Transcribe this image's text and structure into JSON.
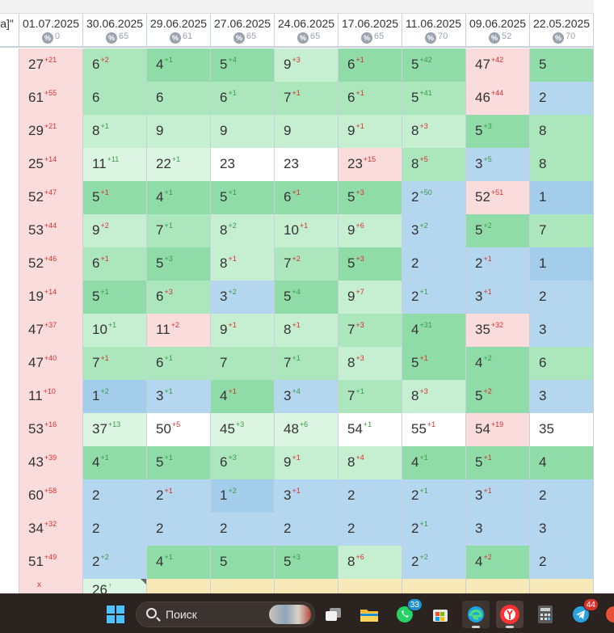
{
  "header": {
    "left_fragment": "та]\"",
    "columns": [
      {
        "date": "01.07.2025",
        "count": "0"
      },
      {
        "date": "30.06.2025",
        "count": "65"
      },
      {
        "date": "29.06.2025",
        "count": "61"
      },
      {
        "date": "27.06.2025",
        "count": "65"
      },
      {
        "date": "24.06.2025",
        "count": "65"
      },
      {
        "date": "17.06.2025",
        "count": "65"
      },
      {
        "date": "11.06.2025",
        "count": "70"
      },
      {
        "date": "09.06.2025",
        "count": "52"
      },
      {
        "date": "22.05.2025",
        "count": "70"
      }
    ],
    "percent_icon_glyph": "%"
  },
  "rows": [
    [
      [
        "27",
        "+21",
        "down",
        "pink"
      ],
      [
        "6",
        "+2",
        "down",
        "g2"
      ],
      [
        "4",
        "+1",
        "up",
        "g1"
      ],
      [
        "5",
        "+4",
        "up",
        "g1"
      ],
      [
        "9",
        "+3",
        "down",
        "g3"
      ],
      [
        "6",
        "+1",
        "down",
        "g1"
      ],
      [
        "5",
        "+42",
        "up",
        "g1"
      ],
      [
        "47",
        "+42",
        "down",
        "pink"
      ],
      [
        "5",
        "",
        "",
        "g1"
      ]
    ],
    [
      [
        "61",
        "+55",
        "down",
        "pink"
      ],
      [
        "6",
        "",
        "",
        "g2"
      ],
      [
        "6",
        "",
        "",
        "g2"
      ],
      [
        "6",
        "+1",
        "up",
        "g2"
      ],
      [
        "7",
        "+1",
        "down",
        "g2"
      ],
      [
        "6",
        "+1",
        "down",
        "g2"
      ],
      [
        "5",
        "+41",
        "up",
        "g2"
      ],
      [
        "46",
        "+44",
        "down",
        "pink"
      ],
      [
        "2",
        "",
        "",
        "blue"
      ]
    ],
    [
      [
        "29",
        "+21",
        "down",
        "pink"
      ],
      [
        "8",
        "+1",
        "up",
        "g3"
      ],
      [
        "9",
        "",
        "",
        "g3"
      ],
      [
        "9",
        "",
        "",
        "g3"
      ],
      [
        "9",
        "",
        "",
        "g3"
      ],
      [
        "9",
        "+1",
        "down",
        "g3"
      ],
      [
        "8",
        "+3",
        "down",
        "g3"
      ],
      [
        "5",
        "+3",
        "up",
        "g1"
      ],
      [
        "8",
        "",
        "",
        "g2"
      ]
    ],
    [
      [
        "25",
        "+14",
        "down",
        "pink"
      ],
      [
        "11",
        "+11",
        "up",
        "g4"
      ],
      [
        "22",
        "+1",
        "up",
        "g4"
      ],
      [
        "23",
        "",
        "",
        "white"
      ],
      [
        "23",
        "",
        "",
        "white"
      ],
      [
        "23",
        "+15",
        "down",
        "pink"
      ],
      [
        "8",
        "+5",
        "down",
        "g2"
      ],
      [
        "3",
        "+5",
        "up",
        "blue"
      ],
      [
        "8",
        "",
        "",
        "g2"
      ]
    ],
    [
      [
        "52",
        "+47",
        "down",
        "pink"
      ],
      [
        "5",
        "+1",
        "down",
        "g1"
      ],
      [
        "4",
        "+1",
        "up",
        "g1"
      ],
      [
        "5",
        "+1",
        "up",
        "g1"
      ],
      [
        "6",
        "+1",
        "down",
        "g1"
      ],
      [
        "5",
        "+3",
        "down",
        "g1"
      ],
      [
        "2",
        "+50",
        "up",
        "blue"
      ],
      [
        "52",
        "+51",
        "down",
        "pink"
      ],
      [
        "1",
        "",
        "",
        "blue2"
      ]
    ],
    [
      [
        "53",
        "+44",
        "down",
        "pink"
      ],
      [
        "9",
        "+2",
        "down",
        "g3"
      ],
      [
        "7",
        "+1",
        "up",
        "g2"
      ],
      [
        "8",
        "+2",
        "up",
        "g3"
      ],
      [
        "10",
        "+1",
        "down",
        "g3"
      ],
      [
        "9",
        "+6",
        "down",
        "g3"
      ],
      [
        "3",
        "+2",
        "up",
        "blue"
      ],
      [
        "5",
        "+2",
        "up",
        "g1"
      ],
      [
        "7",
        "",
        "",
        "g2"
      ]
    ],
    [
      [
        "52",
        "+46",
        "down",
        "pink"
      ],
      [
        "6",
        "+1",
        "down",
        "g2"
      ],
      [
        "5",
        "+3",
        "up",
        "g1"
      ],
      [
        "8",
        "+1",
        "down",
        "g3"
      ],
      [
        "7",
        "+2",
        "down",
        "g2"
      ],
      [
        "5",
        "+3",
        "down",
        "g1"
      ],
      [
        "2",
        "",
        "",
        "blue"
      ],
      [
        "2",
        "+1",
        "down",
        "blue"
      ],
      [
        "1",
        "",
        "",
        "blue2"
      ]
    ],
    [
      [
        "19",
        "+14",
        "down",
        "pink"
      ],
      [
        "5",
        "+1",
        "up",
        "g1"
      ],
      [
        "6",
        "+3",
        "down",
        "g2"
      ],
      [
        "3",
        "+2",
        "up",
        "blue"
      ],
      [
        "5",
        "+4",
        "up",
        "g1"
      ],
      [
        "9",
        "+7",
        "down",
        "g3"
      ],
      [
        "2",
        "+1",
        "up",
        "blue"
      ],
      [
        "3",
        "+1",
        "down",
        "blue"
      ],
      [
        "2",
        "",
        "",
        "blue"
      ]
    ],
    [
      [
        "47",
        "+37",
        "down",
        "pink"
      ],
      [
        "10",
        "+1",
        "up",
        "g3"
      ],
      [
        "11",
        "+2",
        "down",
        "pink"
      ],
      [
        "9",
        "+1",
        "down",
        "g3"
      ],
      [
        "8",
        "+1",
        "down",
        "g3"
      ],
      [
        "7",
        "+3",
        "down",
        "g2"
      ],
      [
        "4",
        "+31",
        "up",
        "g1"
      ],
      [
        "35",
        "+32",
        "down",
        "pink"
      ],
      [
        "3",
        "",
        "",
        "blue"
      ]
    ],
    [
      [
        "47",
        "+40",
        "down",
        "pink"
      ],
      [
        "7",
        "+1",
        "down",
        "g2"
      ],
      [
        "6",
        "+1",
        "up",
        "g2"
      ],
      [
        "7",
        "",
        "",
        "g2"
      ],
      [
        "7",
        "+1",
        "up",
        "g2"
      ],
      [
        "8",
        "+3",
        "down",
        "g3"
      ],
      [
        "5",
        "+1",
        "down",
        "g1"
      ],
      [
        "4",
        "+2",
        "up",
        "g1"
      ],
      [
        "6",
        "",
        "",
        "g2"
      ]
    ],
    [
      [
        "11",
        "+10",
        "down",
        "pink"
      ],
      [
        "1",
        "+2",
        "up",
        "blue2"
      ],
      [
        "3",
        "+1",
        "up",
        "blue"
      ],
      [
        "4",
        "+1",
        "down",
        "g1"
      ],
      [
        "3",
        "+4",
        "up",
        "blue"
      ],
      [
        "7",
        "+1",
        "up",
        "g2"
      ],
      [
        "8",
        "+3",
        "down",
        "g3"
      ],
      [
        "5",
        "+2",
        "down",
        "g1"
      ],
      [
        "3",
        "",
        "",
        "blue"
      ]
    ],
    [
      [
        "53",
        "+16",
        "down",
        "pink"
      ],
      [
        "37",
        "+13",
        "up",
        "g4"
      ],
      [
        "50",
        "+5",
        "down",
        "white"
      ],
      [
        "45",
        "+3",
        "up",
        "g4"
      ],
      [
        "48",
        "+6",
        "up",
        "g4"
      ],
      [
        "54",
        "+1",
        "up",
        "white"
      ],
      [
        "55",
        "+1",
        "down",
        "white"
      ],
      [
        "54",
        "+19",
        "down",
        "pink"
      ],
      [
        "35",
        "",
        "",
        "white"
      ]
    ],
    [
      [
        "43",
        "+39",
        "down",
        "pink"
      ],
      [
        "4",
        "+1",
        "up",
        "g1"
      ],
      [
        "5",
        "+1",
        "up",
        "g1"
      ],
      [
        "6",
        "+3",
        "up",
        "g2"
      ],
      [
        "9",
        "+1",
        "down",
        "g3"
      ],
      [
        "8",
        "+4",
        "down",
        "g3"
      ],
      [
        "4",
        "+1",
        "up",
        "g1"
      ],
      [
        "5",
        "+1",
        "down",
        "g1"
      ],
      [
        "4",
        "",
        "",
        "g1"
      ]
    ],
    [
      [
        "60",
        "+58",
        "down",
        "pink"
      ],
      [
        "2",
        "",
        "",
        "blue"
      ],
      [
        "2",
        "+1",
        "down",
        "blue"
      ],
      [
        "1",
        "+2",
        "up",
        "blue2"
      ],
      [
        "3",
        "+1",
        "down",
        "blue"
      ],
      [
        "2",
        "",
        "",
        "blue"
      ],
      [
        "2",
        "+1",
        "up",
        "blue"
      ],
      [
        "3",
        "+1",
        "down",
        "blue"
      ],
      [
        "2",
        "",
        "",
        "blue"
      ]
    ],
    [
      [
        "34",
        "+32",
        "down",
        "pink"
      ],
      [
        "2",
        "",
        "",
        "blue"
      ],
      [
        "2",
        "",
        "",
        "blue"
      ],
      [
        "2",
        "",
        "",
        "blue"
      ],
      [
        "2",
        "",
        "",
        "blue"
      ],
      [
        "2",
        "",
        "",
        "blue"
      ],
      [
        "2",
        "+1",
        "up",
        "blue"
      ],
      [
        "3",
        "",
        "",
        "blue"
      ],
      [
        "3",
        "",
        "",
        "blue"
      ]
    ],
    [
      [
        "51",
        "+49",
        "down",
        "pink"
      ],
      [
        "2",
        "+2",
        "up",
        "blue"
      ],
      [
        "4",
        "+1",
        "up",
        "g1"
      ],
      [
        "5",
        "",
        "",
        "g1"
      ],
      [
        "5",
        "+3",
        "up",
        "g1"
      ],
      [
        "8",
        "+6",
        "down",
        "g3"
      ],
      [
        "2",
        "+2",
        "up",
        "blue"
      ],
      [
        "4",
        "+2",
        "down",
        "g1"
      ],
      [
        "2",
        "",
        "",
        "blue"
      ]
    ]
  ],
  "partial_row": {
    "first_mark": "x",
    "second_value": "26",
    "second_arrow": "↑"
  },
  "taskbar": {
    "search_placeholder": "Поиск",
    "whatsapp_badge": "33",
    "telegram_badge": "44",
    "icons": [
      "windows-start-icon",
      "search-icon",
      "task-view-icon",
      "file-explorer-icon",
      "whatsapp-icon",
      "store-icon",
      "edge-icon",
      "yandex-browser-icon",
      "calculator-icon",
      "telegram-icon"
    ]
  }
}
